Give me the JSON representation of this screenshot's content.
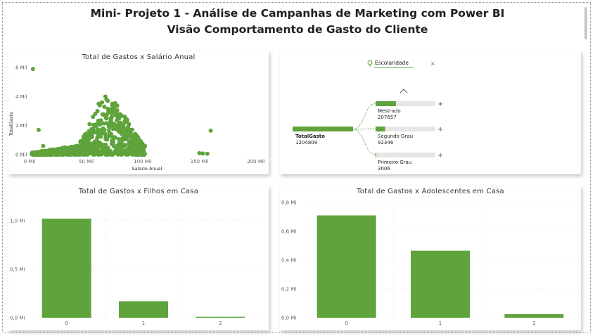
{
  "header": {
    "title_line1": "Mini- Projeto 1 - Análise de Campanhas de Marketing com Power BI",
    "title_line2": "Visão Comportamento de Gasto do Cliente"
  },
  "colors": {
    "green": "#5ea33b",
    "gray_bar": "#e6e6e6",
    "grid": "#e1e1e1"
  },
  "decomp_tree": {
    "search_label": "Escolaridade",
    "root_label": "TotalGasto",
    "root_value": "1204809",
    "nodes": [
      {
        "label": "Mestrado",
        "value": "207657",
        "fraction": 0.17
      },
      {
        "label": "Segundo Grau",
        "value": "92346",
        "fraction": 0.08
      },
      {
        "label": "Primeiro Grau",
        "value": "3006",
        "fraction": 0.0
      }
    ]
  },
  "chart_data": [
    {
      "type": "scatter",
      "title": "Total de Gastos x Salário Anual",
      "xlabel": "Salario Anual",
      "ylabel": "TotalGasto",
      "x_ticks": [
        "0 Mil",
        "50 Mil",
        "100 Mil",
        "150 Mil",
        "200 Mil"
      ],
      "y_ticks": [
        "0 Mil",
        "2 Mil",
        "4 Mil",
        "6 Mil"
      ],
      "xlim": [
        0,
        200000
      ],
      "ylim": [
        0,
        6000
      ],
      "grid": false,
      "note": "dense cloud of ~2200 points, spending rises with salary",
      "points": [
        [
          5000,
          80
        ],
        [
          10000,
          120
        ],
        [
          15000,
          200
        ],
        [
          20000,
          150
        ],
        [
          25000,
          300
        ],
        [
          30000,
          250
        ],
        [
          35000,
          400
        ],
        [
          40000,
          350
        ],
        [
          45000,
          600
        ],
        [
          50000,
          900
        ],
        [
          55000,
          1200
        ],
        [
          60000,
          1500
        ],
        [
          65000,
          1800
        ],
        [
          70000,
          2100
        ],
        [
          72000,
          2400
        ],
        [
          75000,
          2000
        ],
        [
          78000,
          2600
        ],
        [
          80000,
          2200
        ],
        [
          60000,
          3000
        ],
        [
          62000,
          3400
        ],
        [
          64000,
          3600
        ],
        [
          66000,
          3300
        ],
        [
          68000,
          3800
        ],
        [
          70000,
          3100
        ],
        [
          72000,
          2900
        ],
        [
          74000,
          3300
        ],
        [
          76000,
          2700
        ],
        [
          82000,
          1900
        ],
        [
          85000,
          1700
        ],
        [
          88000,
          1500
        ],
        [
          90000,
          1200
        ],
        [
          95000,
          700
        ],
        [
          53000,
          2100
        ],
        [
          56000,
          2600
        ],
        [
          58000,
          2800
        ],
        [
          61000,
          3500
        ],
        [
          67000,
          4000
        ],
        [
          69000,
          3700
        ],
        [
          73000,
          3400
        ],
        [
          77000,
          3000
        ],
        [
          79000,
          2500
        ],
        [
          84000,
          2300
        ],
        [
          86000,
          1800
        ],
        [
          92000,
          1300
        ],
        [
          98000,
          950
        ],
        [
          102000,
          600
        ],
        [
          150000,
          100
        ],
        [
          153000,
          80
        ],
        [
          157000,
          60
        ],
        [
          160000,
          1650
        ],
        [
          3000,
          5900
        ],
        [
          8000,
          1700
        ],
        [
          12000,
          600
        ],
        [
          100000,
          200
        ]
      ]
    },
    {
      "type": "bar",
      "title": "Total de Gastos x Filhos em Casa",
      "categories": [
        "0",
        "1",
        "2"
      ],
      "values": [
        1020000,
        170000,
        10000
      ],
      "y_ticks": [
        "0,0 Mi",
        "0,5 Mi",
        "1,0 Mi"
      ],
      "ylim": [
        0,
        1100000
      ]
    },
    {
      "type": "bar",
      "title": "Total de Gastos x Adolescentes em Casa",
      "categories": [
        "0",
        "1",
        "2"
      ],
      "values": [
        710000,
        465000,
        25000
      ],
      "y_ticks": [
        "0,0 Mi",
        "0,2 Mi",
        "0,4 Mi",
        "0,6 Mi",
        "0,8 Mi"
      ],
      "ylim": [
        0,
        800000
      ]
    }
  ]
}
